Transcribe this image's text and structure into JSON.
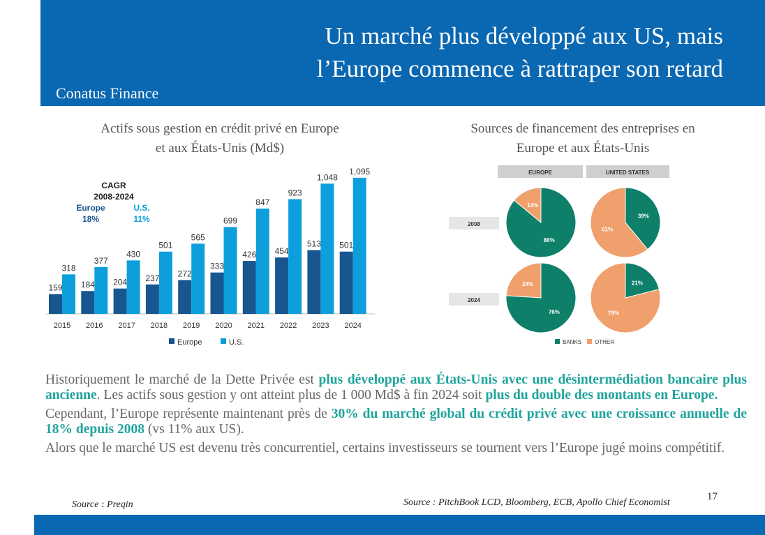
{
  "header": {
    "title_line1": "Un marché plus développé aux US, mais",
    "title_line2": "l’Europe commence à rattraper son retard",
    "brand": "Conatus Finance"
  },
  "left_chart": {
    "title_line1": "Actifs sous gestion en crédit privé en Europe",
    "title_line2": "et aux États-Unis (Md$)",
    "cagr_label": "CAGR",
    "cagr_period": "2008-2024",
    "cagr_europe_label": "Europe",
    "cagr_europe_value": "18%",
    "cagr_us_label": "U.S.",
    "cagr_us_value": "11%"
  },
  "right_chart": {
    "title_line1": "Sources de financement des entreprises en",
    "title_line2": "Europe et aux États-Unis",
    "col_europe": "EUROPE",
    "col_us": "UNITED STATES",
    "row_2008": "2008",
    "row_2024": "2024",
    "legend_banks": "BANKS",
    "legend_other": "OTHER"
  },
  "chart_data": [
    {
      "type": "bar",
      "categories": [
        "2015",
        "2016",
        "2017",
        "2018",
        "2019",
        "2020",
        "2021",
        "2022",
        "2023",
        "2024"
      ],
      "series": [
        {
          "name": "Europe",
          "values": [
            159,
            184,
            204,
            237,
            272,
            333,
            426,
            454,
            513,
            501
          ],
          "labels": [
            "159",
            "184",
            "204",
            "237",
            "272",
            "333",
            "426",
            "454",
            "513",
            "501"
          ],
          "color": "#17568f"
        },
        {
          "name": "U.S.",
          "values": [
            318,
            377,
            430,
            501,
            565,
            699,
            847,
            923,
            1048,
            1095
          ],
          "labels": [
            "318",
            "377",
            "430",
            "501",
            "565",
            "699",
            "847",
            "923",
            "1,048",
            "1,095"
          ],
          "color": "#0d9fdc"
        }
      ],
      "ylim": [
        0,
        1100
      ]
    },
    {
      "type": "pie",
      "pies": [
        {
          "region": "EUROPE",
          "year": "2008",
          "slices": [
            {
              "name": "BANKS",
              "value": 86,
              "label": "86%"
            },
            {
              "name": "OTHER",
              "value": 14,
              "label": "14%"
            }
          ]
        },
        {
          "region": "UNITED STATES",
          "year": "2008",
          "slices": [
            {
              "name": "BANKS",
              "value": 39,
              "label": "39%"
            },
            {
              "name": "OTHER",
              "value": 61,
              "label": "61%"
            }
          ]
        },
        {
          "region": "EUROPE",
          "year": "2024",
          "slices": [
            {
              "name": "BANKS",
              "value": 76,
              "label": "76%"
            },
            {
              "name": "OTHER",
              "value": 24,
              "label": "24%"
            }
          ]
        },
        {
          "region": "UNITED STATES",
          "year": "2024",
          "slices": [
            {
              "name": "BANKS",
              "value": 21,
              "label": "21%"
            },
            {
              "name": "OTHER",
              "value": 79,
              "label": "79%"
            }
          ]
        }
      ],
      "colors": {
        "BANKS": "#0e7f68",
        "OTHER": "#f0a06c"
      }
    }
  ],
  "body": {
    "p1_a": "Historiquement le marché de la Dette Privée est ",
    "p1_b": "plus développé aux États-Unis avec une désintermédiation bancaire plus ancienne",
    "p1_c": ". Les actifs sous gestion y ont atteint plus de 1 000 Md$ à fin 2024 soit ",
    "p1_d": "plus du double des montants en Europe.",
    "p2_a": "Cependant, l’Europe représente maintenant près de ",
    "p2_b": "30% du marché global du crédit privé avec une croissance annuelle de 18% depuis 2008",
    "p2_c": " (vs 11% aux US).",
    "p3": "Alors que le marché US est devenu très concurrentiel, certains investisseurs se tournent vers l’Europe jugé moins compétitif."
  },
  "footer": {
    "source_left": "Source : Preqin",
    "source_right": "Source : PitchBook LCD, Bloomberg, ECB, Apollo Chief Economist",
    "page_number": "17"
  }
}
